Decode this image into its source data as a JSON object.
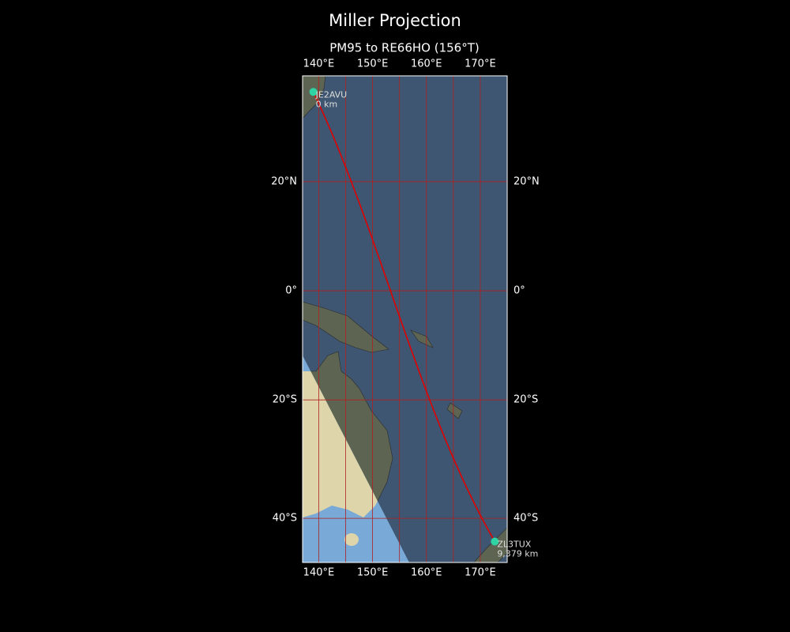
{
  "map": {
    "title": "Miller Projection",
    "subtitle": "PM95 to RE66HO (156°T)",
    "projection": "miller",
    "lonlim": [
      137,
      175
    ],
    "latlim": [
      -46.3,
      38
    ],
    "lonticks": [
      {
        "value": 140,
        "label": "140°E"
      },
      {
        "value": 150,
        "label": "150°E"
      },
      {
        "value": 160,
        "label": "160°E"
      },
      {
        "value": 170,
        "label": "170°E"
      }
    ],
    "latticks": [
      {
        "value": 20,
        "label": "20°N"
      },
      {
        "value": 0,
        "label": "0°"
      },
      {
        "value": -20,
        "label": "20°S"
      },
      {
        "value": -40,
        "label": "40°S"
      }
    ],
    "lon_grid": [
      140,
      145,
      150,
      155,
      160,
      165,
      170
    ],
    "grid_color": "#b02020",
    "route_color": "#e00000",
    "point_color": "#2ed4a4",
    "points": [
      {
        "name": "JE2AVU",
        "lon": 139.0,
        "lat": 35.4,
        "distance_label": "0 km"
      },
      {
        "name": "ZL3TUX",
        "lon": 172.7,
        "lat": -43.6,
        "distance_label": "9,379 km"
      }
    ]
  }
}
